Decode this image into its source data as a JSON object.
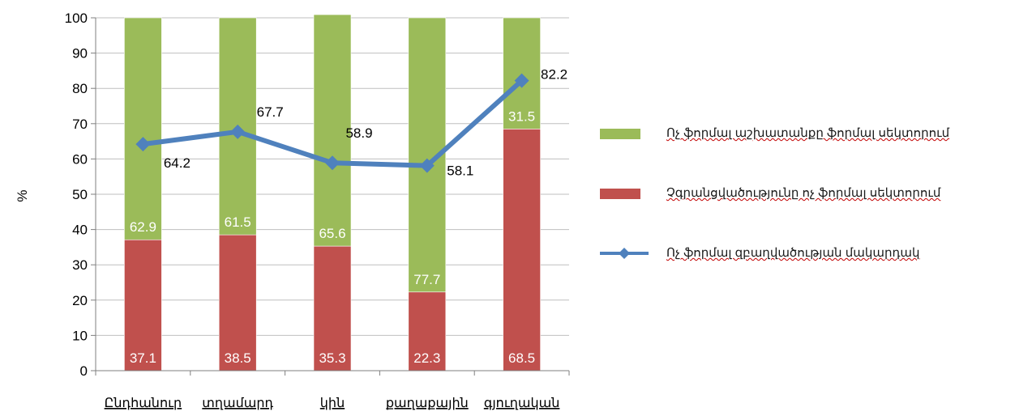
{
  "chart_data": {
    "type": "bar",
    "stacked": true,
    "categories": [
      "Ընդհանուր",
      "տղամարդ",
      "կին",
      "քաղաքային",
      "գյուղական"
    ],
    "ylabel": "%",
    "ylim": [
      0,
      100
    ],
    "yticks": [
      0,
      10,
      20,
      30,
      40,
      50,
      60,
      70,
      80,
      90,
      100
    ],
    "grid": true,
    "legend_position": "right",
    "series": [
      {
        "name": "Չգրանցվածությունը ոչ ֆորմալ սեկտորում",
        "type": "bar",
        "color": "#c0504d",
        "values": [
          37.1,
          38.5,
          35.3,
          22.3,
          68.5
        ],
        "labels": [
          "37.1",
          "38.5",
          "35.3",
          "22.3",
          "68.5"
        ]
      },
      {
        "name": "Ոչ ֆորմալ աշխատանքը ֆորմալ սեկտորում",
        "type": "bar",
        "color": "#9bbb59",
        "values": [
          62.9,
          61.5,
          65.6,
          77.7,
          31.5
        ],
        "labels": [
          "62.9",
          "61.5",
          "65.6",
          "77.7",
          "31.5"
        ]
      },
      {
        "name": "Ոչ ֆորմալ զբաղվածության մակարդակ",
        "type": "line",
        "color": "#4f81bd",
        "values": [
          64.2,
          67.7,
          58.9,
          58.1,
          82.2
        ],
        "labels": [
          "64.2",
          "67.7",
          "58.9",
          "58.1",
          "82.2"
        ]
      }
    ],
    "legend_order": [
      1,
      0,
      2
    ]
  }
}
